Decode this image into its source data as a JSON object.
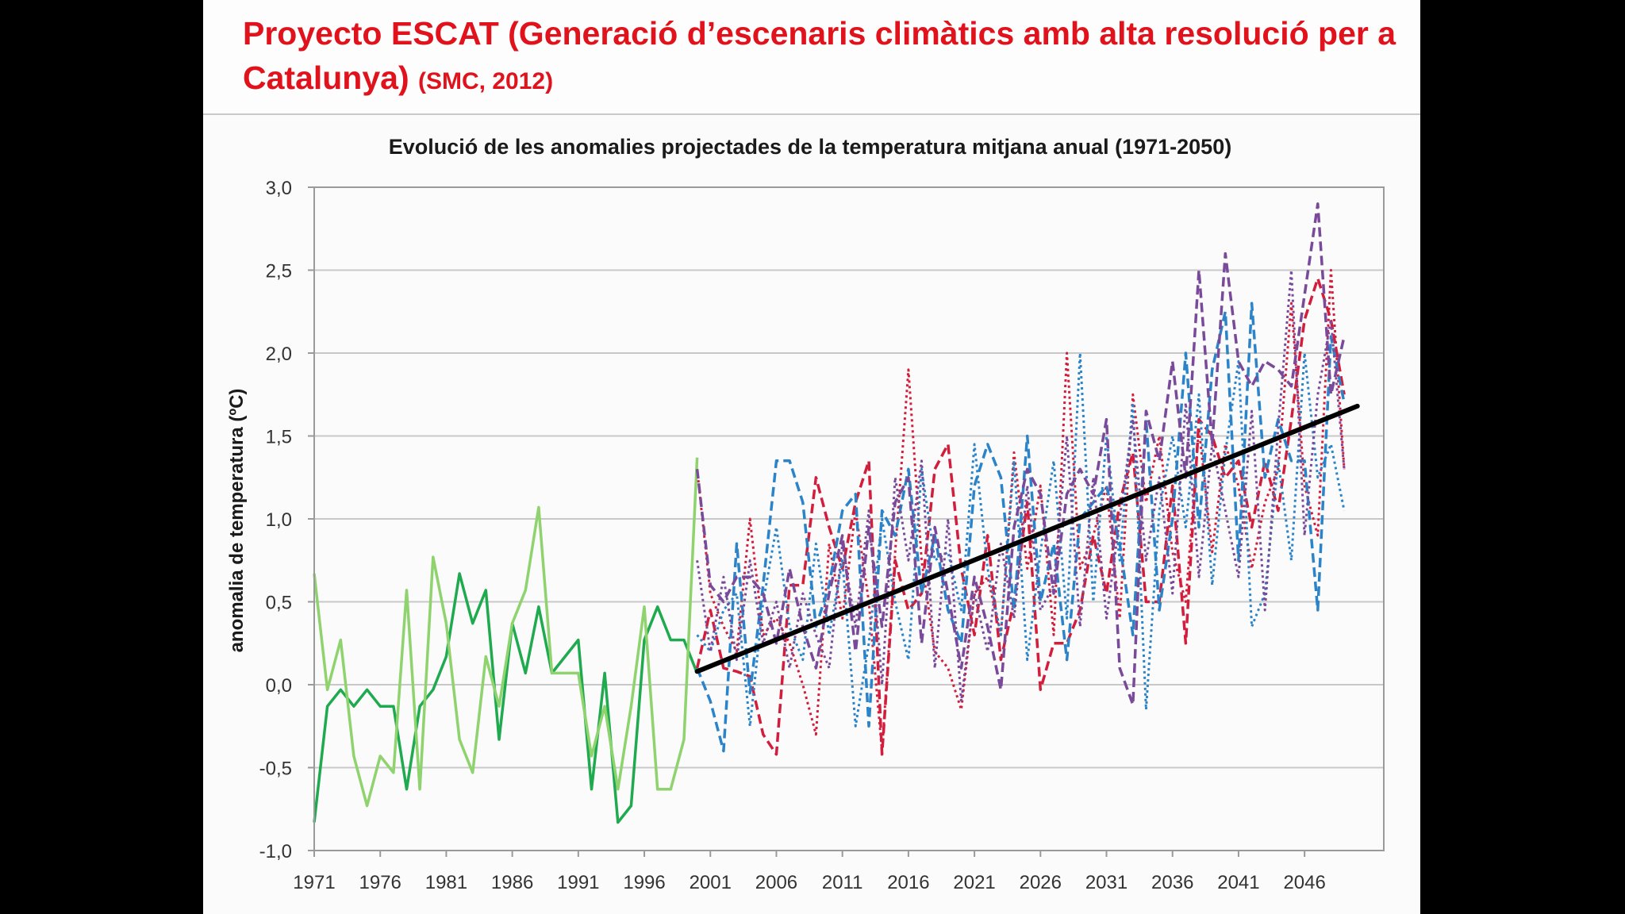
{
  "slide": {
    "title_main": "Proyecto ESCAT (Generació d’escenaris climàtics amb alta resolució per a Catalunya)",
    "title_source": "(SMC, 2012)"
  },
  "colors": {
    "obs_dark": "#1faa4f",
    "obs_light": "#8ed36e",
    "red": "#d21e3c",
    "blue": "#2b84c9",
    "purple": "#7a4a9a",
    "trend": "#000000",
    "title": "#e0121c"
  },
  "chart_data": {
    "type": "line",
    "title": "Evolució de les anomalies projectades  de la temperatura mitjana anual (1971-2050)",
    "xlabel": "",
    "ylabel": "anomalia de temperatura (ºC)",
    "xlim": [
      1971,
      2050
    ],
    "ylim": [
      -1.0,
      3.0
    ],
    "x_ticks": [
      1971,
      1976,
      1981,
      1986,
      1991,
      1996,
      2001,
      2006,
      2011,
      2016,
      2021,
      2026,
      2031,
      2036,
      2041,
      2046
    ],
    "y_ticks": [
      "-1,0",
      "-0,5",
      "0,0",
      "0,5",
      "1,0",
      "1,5",
      "2,0",
      "2,5",
      "3,0"
    ],
    "y_tick_values": [
      -1.0,
      -0.5,
      0.0,
      0.5,
      1.0,
      1.5,
      2.0,
      2.5,
      3.0
    ],
    "grid": true,
    "legend": "none",
    "series": [
      {
        "style": "solid",
        "color_key": "obs_dark",
        "x_start": 1971,
        "values": [
          -0.83,
          -0.13,
          -0.03,
          -0.13,
          -0.03,
          -0.13,
          -0.13,
          -0.63,
          -0.13,
          -0.03,
          0.17,
          0.67,
          0.37,
          0.57,
          -0.33,
          0.37,
          0.07,
          0.47,
          0.07,
          0.17,
          0.27,
          -0.63,
          0.07,
          -0.83,
          -0.73,
          0.27,
          0.47,
          0.27,
          0.27,
          0.07
        ]
      },
      {
        "style": "solid",
        "color_key": "obs_light",
        "x_start": 1971,
        "values": [
          0.67,
          -0.03,
          0.27,
          -0.43,
          -0.73,
          -0.43,
          -0.53,
          0.57,
          -0.63,
          0.77,
          0.37,
          -0.33,
          -0.53,
          0.17,
          -0.13,
          0.37,
          0.57,
          1.07,
          0.07,
          0.07,
          0.07,
          -0.43,
          -0.13,
          -0.63,
          -0.13,
          0.47,
          -0.63,
          -0.63,
          -0.33,
          1.37
        ]
      },
      {
        "style": "dashed",
        "color_key": "red",
        "x_start": 2000,
        "values": [
          0.1,
          0.45,
          0.1,
          0.08,
          0.05,
          -0.3,
          -0.42,
          0.6,
          0.6,
          1.25,
          0.95,
          0.7,
          1.1,
          1.35,
          -0.42,
          0.75,
          0.45,
          0.55,
          1.3,
          1.45,
          0.7,
          0.3,
          0.9,
          0.15,
          0.5,
          1.1,
          -0.03,
          0.25,
          0.25,
          0.45,
          0.9,
          0.55,
          1.1,
          1.4,
          0.5,
          0.5,
          1.2,
          0.25,
          1.6,
          1.5,
          1.25,
          1.35,
          0.95,
          1.35,
          1.05,
          1.6,
          2.2,
          2.45,
          2.2,
          1.75
        ]
      },
      {
        "style": "dotted",
        "color_key": "red",
        "x_start": 2000,
        "values": [
          1.3,
          0.55,
          0.35,
          0.2,
          1.0,
          0.3,
          0.4,
          0.25,
          -0.0,
          -0.3,
          0.85,
          0.4,
          1.05,
          0.5,
          -0.4,
          0.8,
          1.9,
          0.75,
          0.2,
          0.1,
          -0.15,
          0.55,
          0.65,
          0.3,
          1.4,
          0.7,
          1.2,
          0.3,
          2.0,
          0.7,
          0.9,
          1.2,
          0.4,
          1.75,
          1.1,
          1.5,
          0.8,
          0.5,
          1.55,
          0.8,
          1.45,
          1.2,
          0.7,
          1.1,
          1.3,
          2.3,
          1.2,
          0.9,
          2.5,
          1.3
        ]
      },
      {
        "style": "dashed",
        "color_key": "blue",
        "x_start": 2000,
        "values": [
          0.1,
          -0.1,
          -0.4,
          0.85,
          -0.05,
          0.6,
          1.35,
          1.35,
          1.1,
          0.35,
          0.6,
          1.05,
          1.15,
          -0.25,
          1.05,
          0.9,
          1.3,
          0.55,
          0.9,
          0.45,
          0.25,
          1.2,
          1.45,
          1.25,
          0.45,
          1.5,
          0.5,
          0.85,
          0.15,
          1.0,
          1.1,
          1.2,
          0.85,
          0.3,
          1.6,
          0.45,
          1.0,
          2.0,
          0.95,
          1.9,
          2.25,
          0.75,
          2.3,
          1.25,
          1.6,
          1.35,
          1.35,
          0.45,
          2.1,
          1.7
        ]
      },
      {
        "style": "dotted",
        "color_key": "blue",
        "x_start": 2000,
        "values": [
          0.3,
          0.2,
          0.45,
          0.55,
          -0.25,
          0.5,
          0.95,
          0.35,
          0.15,
          0.85,
          0.3,
          0.75,
          -0.25,
          0.25,
          1.0,
          0.5,
          0.15,
          1.3,
          0.75,
          0.8,
          0.45,
          1.45,
          0.7,
          0.3,
          1.35,
          0.15,
          0.8,
          1.35,
          0.4,
          2.0,
          0.5,
          1.5,
          0.75,
          1.7,
          -0.15,
          1.05,
          1.5,
          0.95,
          1.75,
          0.6,
          1.4,
          1.95,
          0.35,
          0.55,
          1.35,
          0.75,
          2.0,
          1.25,
          1.45,
          1.05
        ]
      },
      {
        "style": "dashed",
        "color_key": "purple",
        "x_start": 2000,
        "values": [
          1.3,
          0.6,
          0.5,
          0.65,
          0.65,
          0.55,
          0.25,
          0.7,
          0.35,
          0.1,
          0.55,
          0.9,
          0.2,
          0.95,
          0.35,
          1.1,
          1.25,
          0.25,
          0.95,
          0.55,
          0.1,
          0.65,
          0.35,
          -0.03,
          0.95,
          1.3,
          1.15,
          0.55,
          1.15,
          1.3,
          1.15,
          1.6,
          0.1,
          -0.12,
          1.65,
          1.35,
          1.95,
          1.25,
          2.5,
          1.45,
          2.6,
          1.95,
          1.8,
          1.95,
          1.9,
          1.8,
          2.35,
          2.9,
          1.75,
          2.1
        ]
      },
      {
        "style": "dotted",
        "color_key": "purple",
        "x_start": 2000,
        "values": [
          0.75,
          0.2,
          0.65,
          0.15,
          0.75,
          0.25,
          0.5,
          0.1,
          0.55,
          0.3,
          0.1,
          0.85,
          0.35,
          1.05,
          0.0,
          1.25,
          0.75,
          1.35,
          0.1,
          1.0,
          -0.1,
          0.55,
          0.2,
          0.85,
          0.4,
          1.2,
          0.45,
          0.6,
          1.5,
          0.35,
          1.25,
          0.4,
          1.0,
          1.6,
          0.75,
          1.25,
          0.55,
          1.7,
          0.65,
          1.45,
          1.05,
          0.65,
          1.65,
          0.45,
          1.55,
          2.5,
          0.9,
          1.75,
          2.2,
          1.3
        ]
      },
      {
        "style": "trend",
        "color_key": "trend",
        "x": [
          2000,
          2050
        ],
        "values": [
          0.08,
          1.68
        ]
      }
    ]
  }
}
